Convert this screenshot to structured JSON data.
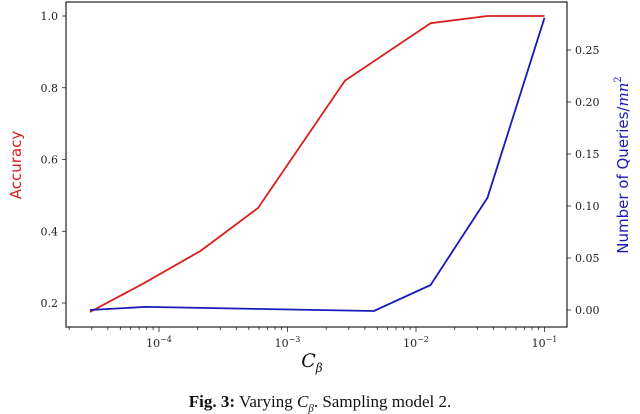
{
  "chart_data": {
    "type": "line",
    "title": "",
    "xlabel": "C_β",
    "xlabel_main": "C",
    "xlabel_sub": "β",
    "xscale": "log",
    "xlim": [
      2e-05,
      0.14
    ],
    "x_ticks": [
      {
        "value": 0.0001,
        "base": "10",
        "exp": "−4"
      },
      {
        "value": 0.001,
        "base": "10",
        "exp": "−3"
      },
      {
        "value": 0.01,
        "base": "10",
        "exp": "−2"
      },
      {
        "value": 0.1,
        "base": "10",
        "exp": "−1"
      }
    ],
    "y_left": {
      "label": "Accuracy",
      "color": "#d62020",
      "ylim": [
        0.14,
        1.04
      ],
      "ticks": [
        "0.2",
        "0.4",
        "0.6",
        "0.8",
        "1.0"
      ]
    },
    "y_right": {
      "label": "Number of Queries/",
      "label_math": "mn",
      "label_exp": "2",
      "color": "#1a1ab8",
      "ylim": [
        -0.015,
        0.29
      ],
      "ticks": [
        "0.00",
        "0.05",
        "0.10",
        "0.15",
        "0.20",
        "0.25"
      ]
    },
    "series": [
      {
        "name": "Accuracy",
        "axis": "left",
        "color": "#d62020",
        "x": [
          2.9e-05,
          7.6e-05,
          0.00021,
          0.00059,
          0.0028,
          0.013,
          0.036,
          0.1
        ],
        "values": [
          0.175,
          0.255,
          0.345,
          0.465,
          0.82,
          0.98,
          1.0,
          1.0
        ]
      },
      {
        "name": "Number of Queries/mn^2",
        "axis": "right",
        "color": "#1a1ab8",
        "x": [
          2.9e-05,
          7.8e-05,
          0.0047,
          0.013,
          0.036,
          0.1
        ],
        "values": [
          0.0,
          0.003,
          -0.001,
          0.024,
          0.108,
          0.281
        ]
      }
    ],
    "grid": false,
    "legend": null
  },
  "caption": {
    "fig_label": "Fig. 3:",
    "text_before": " Varying ",
    "math": "C",
    "math_sub": "β",
    "text_after": ". Sampling model 2."
  }
}
